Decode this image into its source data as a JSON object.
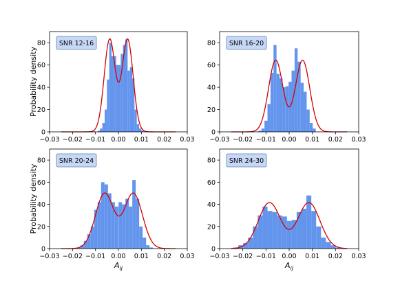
{
  "figure": {
    "ylabel": "Probability density",
    "xlabel": "A",
    "xlabel_sub": "ij"
  },
  "colors": {
    "bar": "#6495ED",
    "curve": "#D00000",
    "legend_fill": "#C6D8F5",
    "legend_edge": "#5B7FB8"
  },
  "chart_data": [
    {
      "type": "bar",
      "legend": "SNR 12-16",
      "xlim": [
        -0.03,
        0.03
      ],
      "ylim": [
        0,
        90
      ],
      "xticks": [
        -0.03,
        -0.02,
        -0.01,
        0.0,
        0.01,
        0.02,
        0.03
      ],
      "xtick_labels": [
        "−0.03",
        "−0.02",
        "−0.01",
        "0.00",
        "0.01",
        "0.02",
        "0.03"
      ],
      "yticks": [
        0,
        20,
        40,
        60,
        80
      ],
      "yticklabels": [
        "0",
        "20",
        "40",
        "60",
        "80"
      ],
      "bin_width": 0.001,
      "bin_centers": [
        -0.0145,
        -0.0125,
        -0.0105,
        -0.0085,
        -0.0075,
        -0.0065,
        -0.0055,
        -0.0045,
        -0.0035,
        -0.0025,
        -0.0015,
        -0.0005,
        0.0005,
        0.0015,
        0.0025,
        0.0035,
        0.0045,
        0.0055,
        0.0065,
        0.0075,
        0.0085,
        0.0095,
        0.0105,
        0.0125,
        0.0145
      ],
      "values": [
        0.5,
        0.5,
        0.5,
        1,
        3,
        8,
        20,
        47,
        80,
        68,
        68,
        60,
        60,
        70,
        78,
        83,
        55,
        58,
        48,
        20,
        7,
        3,
        1,
        0.5,
        0.5
      ],
      "curve": {
        "w1": 0.5,
        "mu1": -0.0038,
        "s1": 0.0024,
        "w2": 0.5,
        "mu2": 0.004,
        "s2": 0.0024
      }
    },
    {
      "type": "bar",
      "legend": "SNR 16-20",
      "xlim": [
        -0.03,
        0.03
      ],
      "ylim": [
        0,
        90
      ],
      "xticks": [
        -0.03,
        -0.02,
        -0.01,
        0.0,
        0.01,
        0.02,
        0.03
      ],
      "xtick_labels": [
        "−0.03",
        "−0.02",
        "−0.01",
        "0.00",
        "0.01",
        "0.02",
        "0.03"
      ],
      "yticks": [
        0,
        20,
        40,
        60,
        80
      ],
      "yticklabels": [
        "0",
        "20",
        "40",
        "60",
        "80"
      ],
      "bin_width": 0.0013,
      "bin_centers": [
        -0.0126,
        -0.0113,
        -0.01,
        -0.0087,
        -0.0074,
        -0.0061,
        -0.0048,
        -0.0035,
        -0.0022,
        -0.0009,
        0.0004,
        0.0017,
        0.003,
        0.0043,
        0.0056,
        0.0069,
        0.0082,
        0.0095,
        0.0108
      ],
      "values": [
        1,
        3,
        10,
        25,
        53,
        78,
        52,
        48,
        40,
        41,
        45,
        55,
        75,
        63,
        44,
        36,
        20,
        8,
        3
      ],
      "curve": {
        "w1": 0.5,
        "mu1": -0.0058,
        "s1": 0.0031,
        "w2": 0.5,
        "mu2": 0.0058,
        "s2": 0.0031
      }
    },
    {
      "type": "bar",
      "legend": "SNR 20-24",
      "xlim": [
        -0.03,
        0.03
      ],
      "ylim": [
        0,
        90
      ],
      "xticks": [
        -0.03,
        -0.02,
        -0.01,
        0.0,
        0.01,
        0.02,
        0.03
      ],
      "xtick_labels": [
        "−0.03",
        "−0.02",
        "−0.01",
        "0.00",
        "0.01",
        "0.02",
        "0.03"
      ],
      "yticks": [
        0,
        20,
        40,
        60,
        80
      ],
      "yticklabels": [
        "0",
        "20",
        "40",
        "60",
        "80"
      ],
      "bin_width": 0.0015,
      "bin_centers": [
        -0.0173,
        -0.0158,
        -0.0143,
        -0.0128,
        -0.0113,
        -0.0098,
        -0.0083,
        -0.0068,
        -0.0053,
        -0.0038,
        -0.0023,
        -0.0008,
        0.0008,
        0.0023,
        0.0038,
        0.0053,
        0.0068,
        0.0083,
        0.0098,
        0.0113,
        0.0128,
        0.0143
      ],
      "values": [
        1,
        3,
        7,
        13,
        20,
        35,
        42,
        60,
        58,
        50,
        42,
        38,
        42,
        40,
        45,
        38,
        62,
        45,
        20,
        10,
        3,
        1
      ],
      "curve": {
        "w1": 0.5,
        "mu1": -0.006,
        "s1": 0.004,
        "w2": 0.5,
        "mu2": 0.0065,
        "s2": 0.004
      }
    },
    {
      "type": "bar",
      "legend": "SNR 24-30",
      "xlim": [
        -0.03,
        0.03
      ],
      "ylim": [
        0,
        90
      ],
      "xticks": [
        -0.03,
        -0.02,
        -0.01,
        0.0,
        0.01,
        0.02,
        0.03
      ],
      "xtick_labels": [
        "−0.03",
        "−0.02",
        "−0.01",
        "0.00",
        "0.01",
        "0.02",
        "0.03"
      ],
      "yticks": [
        0,
        20,
        40,
        60,
        80
      ],
      "yticklabels": [
        "0",
        "20",
        "40",
        "60",
        "80"
      ],
      "bin_width": 0.0021,
      "bin_centers": [
        -0.023,
        -0.0209,
        -0.0188,
        -0.0167,
        -0.0146,
        -0.0125,
        -0.0104,
        -0.0083,
        -0.0062,
        -0.0041,
        -0.002,
        0.0001,
        0.0022,
        0.0043,
        0.0064,
        0.0085,
        0.0106,
        0.0127,
        0.0148,
        0.0169,
        0.019,
        0.0211
      ],
      "values": [
        1,
        3,
        5,
        10,
        20,
        30,
        38,
        34,
        33,
        30,
        29,
        25,
        26,
        33,
        36,
        48,
        34,
        20,
        10,
        6,
        3,
        1
      ],
      "curve": {
        "w1": 0.5,
        "mu1": -0.0085,
        "s1": 0.0048,
        "w2": 0.5,
        "mu2": 0.0085,
        "s2": 0.0048
      }
    }
  ]
}
